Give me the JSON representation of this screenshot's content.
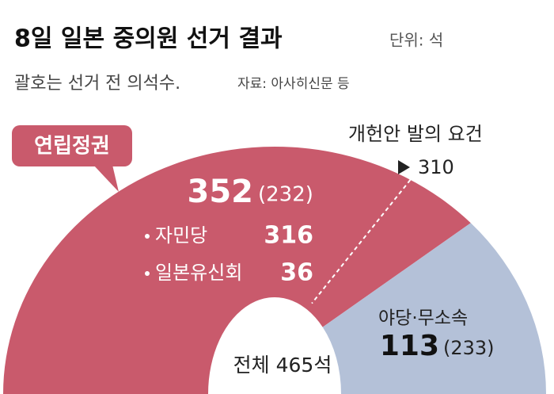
{
  "chart_data": {
    "type": "half-donut",
    "title": "8일 일본 중의원 선거 결과",
    "unit": "단위: 석",
    "subtitle": "괄호는 선거 전 의석수.",
    "source": "자료: 아사히신문 등",
    "total": {
      "value": 465,
      "label": "전체 465석"
    },
    "threshold": {
      "label": "개헌안 발의 요건",
      "value": 310
    },
    "segments": [
      {
        "name": "연립정권",
        "value": 352,
        "prev": {
          "value": 232,
          "label": "(232)"
        },
        "color": "#c95a6c",
        "items": [
          {
            "name": "자민당",
            "value": 316
          },
          {
            "name": "일본유신회",
            "value": 36
          }
        ]
      },
      {
        "name": "야당·무소속",
        "value": 113,
        "prev": {
          "value": 233,
          "label": "(233)"
        },
        "color": "#b4c1d8"
      }
    ]
  }
}
